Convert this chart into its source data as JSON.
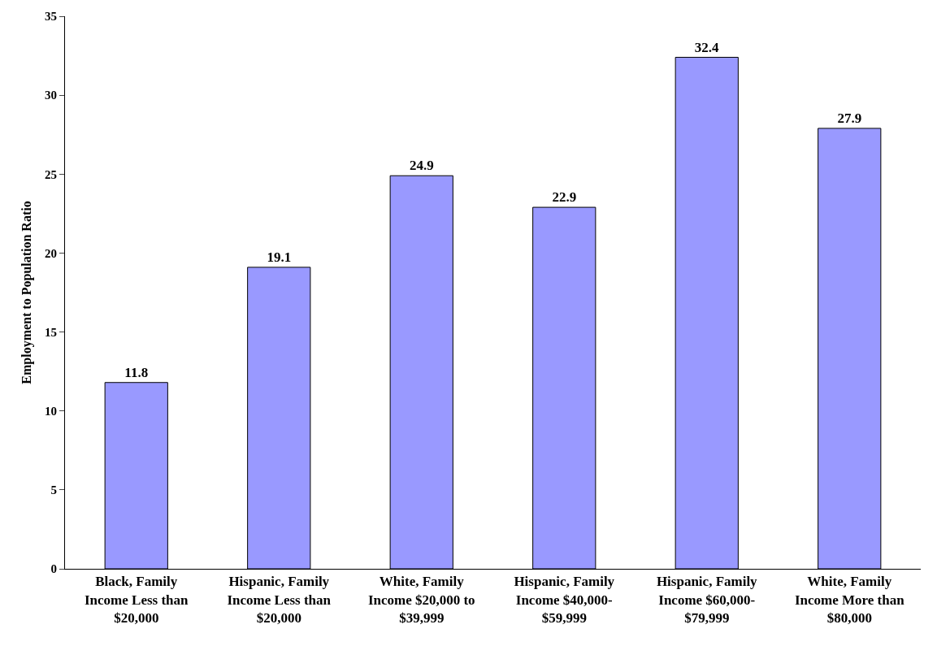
{
  "chart_data": {
    "type": "bar",
    "ylabel": "Employment to Population Ratio",
    "categories": [
      "Black, Family Income Less than $20,000",
      "Hispanic, Family Income Less than $20,000",
      "White, Family Income $20,000 to $39,999",
      "Hispanic, Family Income $40,000- $59,999",
      "Hispanic, Family Income $60,000- $79,999",
      "White, Family Income More than $80,000"
    ],
    "values": [
      11.8,
      19.1,
      24.9,
      22.9,
      32.4,
      27.9
    ],
    "color": "#9999ff",
    "ylim": [
      0,
      35
    ],
    "yticks": [
      0,
      5,
      10,
      15,
      20,
      25,
      30,
      35
    ],
    "data_labels": true
  }
}
